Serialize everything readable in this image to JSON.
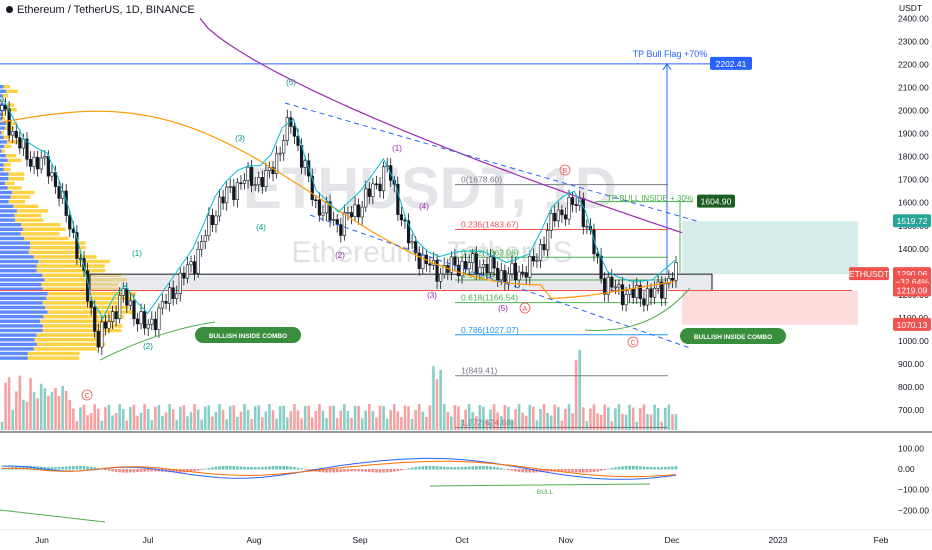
{
  "header": {
    "title": "Ethereum / TetherUS, 1D, BINANCE"
  },
  "watermark": {
    "symbol": "ETHUSDT, 1D",
    "name": "Ethereum · TetherUS"
  },
  "price_axis": {
    "unit": "USDT",
    "ticks": [
      2400,
      2300,
      2200,
      2100,
      2000,
      1900,
      1800,
      1700,
      1600,
      1500,
      1400,
      1300,
      1200,
      1100,
      1000,
      900,
      800,
      700
    ],
    "tick_labels": [
      "2400.00",
      "2300.00",
      "2200.00",
      "2100.00",
      "2000.00",
      "1900.00",
      "1800.00",
      "1700.00",
      "1600.00",
      "1500.00",
      "1400.00",
      "1300.00",
      "1200.00",
      "1100.00",
      "1000.00",
      "900.00",
      "800.00",
      "700.00"
    ]
  },
  "osc_axis": {
    "ticks": [
      100,
      0,
      -100,
      -200
    ],
    "tick_labels": [
      "100.00",
      "0.00",
      "−100.00",
      "−200.00"
    ]
  },
  "time_axis": {
    "labels": [
      "Jun",
      "Jul",
      "Aug",
      "Sep",
      "Oct",
      "Nov",
      "Dec",
      "2023",
      "Feb"
    ]
  },
  "price_tags": [
    {
      "text": "2202.41",
      "price": 2202.41,
      "color": "#2962ff"
    },
    {
      "text": "1604.90",
      "price": 1604.9,
      "color": "#1b5e20"
    },
    {
      "text": "1519.72",
      "price": 1519.72,
      "color": "#26a69a"
    },
    {
      "text": "ETHUSDT",
      "price": 1290.06,
      "color": "#ef5350"
    },
    {
      "text": "1290.06",
      "price": 1290.06,
      "color": "#ef5350"
    },
    {
      "text": "−32.64%",
      "price": 1255,
      "color": "#ef5350"
    },
    {
      "text": "1219.09",
      "price": 1219.09,
      "color": "#ef5350"
    },
    {
      "text": "1070.13",
      "price": 1070.13,
      "color": "#ef5350"
    }
  ],
  "fib_labels": [
    "0(1678.60)",
    "0.236(1483.67)",
    "0.382(1363.08)",
    "0.5(1264.61)",
    "0.618(1166.54)",
    "0.786(1027.07)",
    "1(849.41)",
    "1.272(624.68)"
  ],
  "wave_labels": [
    "(1)",
    "(2)",
    "(3)",
    "(4)",
    "(5)",
    "(1)",
    "(2)",
    "(3)",
    "(4)",
    "(5)",
    "A",
    "B",
    "C",
    "C"
  ],
  "annotations": {
    "tp_bull_flag": "TP Bull Flag +70%",
    "tp_bull_inside": "TP BULL INSIDE + 30%",
    "bullish_combo_1": "BULLISH INSIDE COMBO",
    "bullish_combo_2": "BULLISH INSIDE COMBO",
    "bull_div": "BULL"
  },
  "colors": {
    "up": "#26a69a",
    "down": "#ef5350",
    "candle": "#131722",
    "fib": "#787b86",
    "ma_orange": "#ff9800",
    "ma_purple": "#9c27b0",
    "ma_teal": "#00bcd4",
    "ma_green": "#4caf50",
    "vp_yellow": "#ffc107",
    "vp_blue": "#2962ff",
    "target_blue": "#2962ff"
  },
  "chart_data": {
    "type": "candlestick",
    "title": "Ethereum / TetherUS, 1D, BINANCE",
    "ylabel": "USDT",
    "ylim": [
      600,
      2450
    ],
    "grid": true,
    "series": [
      {
        "name": "ETHUSDT",
        "x": [
          "2022-05-20",
          "2022-05-27",
          "2022-06-03",
          "2022-06-10",
          "2022-06-17",
          "2022-06-24",
          "2022-07-01",
          "2022-07-08",
          "2022-07-15",
          "2022-07-22",
          "2022-07-29",
          "2022-08-05",
          "2022-08-12",
          "2022-08-19",
          "2022-08-26",
          "2022-09-02",
          "2022-09-09",
          "2022-09-16",
          "2022-09-23",
          "2022-09-30",
          "2022-10-07",
          "2022-10-14",
          "2022-10-21",
          "2022-10-28",
          "2022-11-04",
          "2022-11-11",
          "2022-11-18",
          "2022-11-25",
          "2022-12-02"
        ],
        "values": [
          2000,
          1800,
          1750,
          1450,
          1000,
          1200,
          1050,
          1200,
          1350,
          1600,
          1700,
          1700,
          1950,
          1600,
          1500,
          1600,
          1750,
          1400,
          1300,
          1330,
          1330,
          1280,
          1320,
          1550,
          1600,
          1250,
          1200,
          1200,
          1290
        ]
      }
    ],
    "volume": [
      1,
      1,
      1,
      1,
      2,
      1,
      1,
      1,
      1,
      1,
      1,
      1,
      1,
      1,
      1,
      1,
      1,
      1,
      1,
      1,
      1,
      1,
      1,
      1,
      2,
      1,
      1,
      1,
      1
    ],
    "target_zone": {
      "take_profit": 1519.72,
      "entry": 1219.09,
      "stop": 1070.13,
      "change": "−32.64%"
    },
    "fib_levels": [
      {
        "ratio": 0,
        "price": 1678.6
      },
      {
        "ratio": 0.236,
        "price": 1483.67
      },
      {
        "ratio": 0.382,
        "price": 1363.08
      },
      {
        "ratio": 0.5,
        "price": 1264.61
      },
      {
        "ratio": 0.618,
        "price": 1166.54
      },
      {
        "ratio": 0.786,
        "price": 1027.07
      },
      {
        "ratio": 1,
        "price": 849.41
      },
      {
        "ratio": 1.272,
        "price": 624.68
      }
    ]
  }
}
